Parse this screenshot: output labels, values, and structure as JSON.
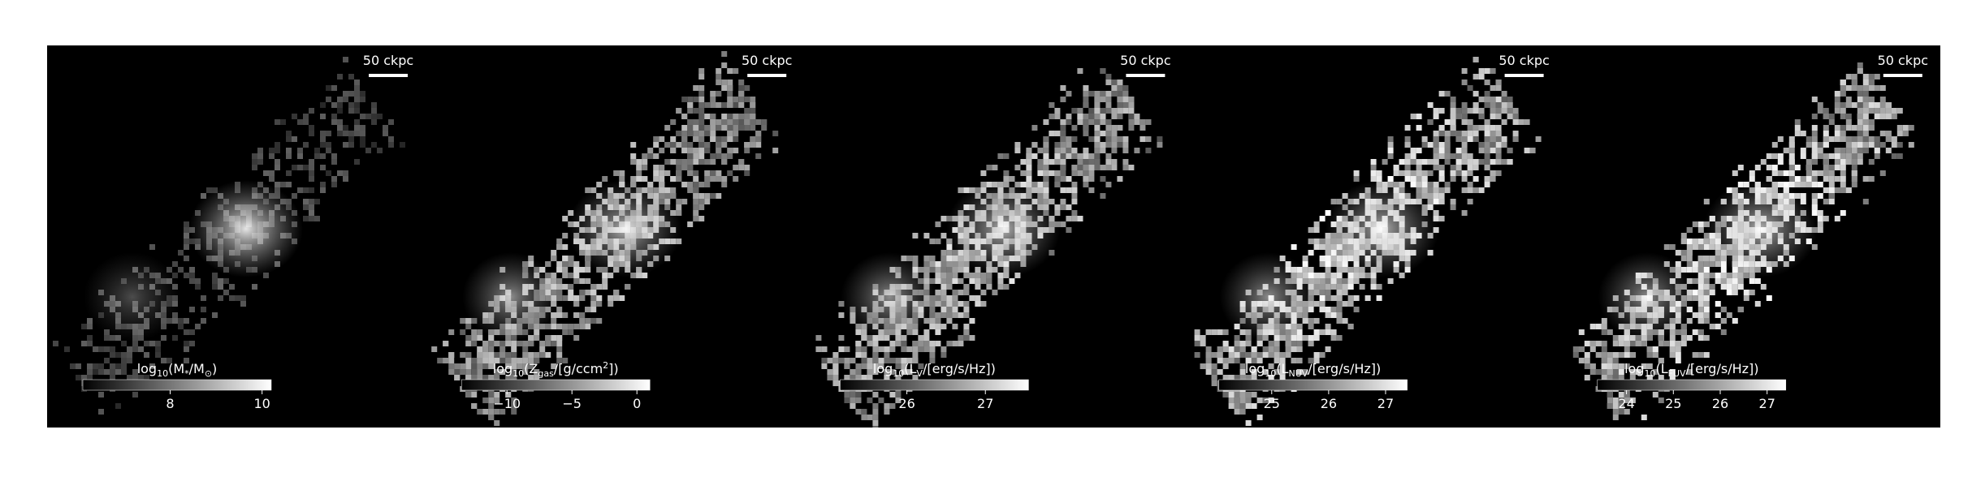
{
  "panels": [
    {
      "scale_bar": "50 ckpc",
      "label": [
        {
          "text": "log"
        },
        {
          "text": "10",
          "sub": true
        },
        {
          "text": "(M"
        },
        {
          "text": "*",
          "sub": true
        },
        {
          "text": "/M"
        },
        {
          "text": "⊙",
          "sub": true
        },
        {
          "text": ")"
        }
      ],
      "clim": [
        6.1,
        10.2
      ],
      "ticks": [
        8,
        10
      ]
    },
    {
      "scale_bar": "50 ckpc",
      "label": [
        {
          "text": "log"
        },
        {
          "text": "10",
          "sub": true
        },
        {
          "text": "(Z"
        },
        {
          "text": "gas",
          "sub": true
        },
        {
          "text": "/[g/ccm"
        },
        {
          "text": "2",
          "sup": true
        },
        {
          "text": "])"
        }
      ],
      "clim": [
        -13.5,
        1
      ],
      "ticks": [
        {
          "value": -10,
          "label": "−10"
        },
        {
          "value": -5,
          "label": "−5"
        },
        0
      ]
    },
    {
      "scale_bar": "50 ckpc",
      "label": [
        {
          "text": "log"
        },
        {
          "text": "10",
          "sub": true
        },
        {
          "text": "(L"
        },
        {
          "text": "V",
          "sub": true
        },
        {
          "text": "/[erg/s/Hz])"
        }
      ],
      "clim": [
        25.15,
        27.55
      ],
      "ticks": [
        26,
        27
      ]
    },
    {
      "scale_bar": "50 ckpc",
      "label": [
        {
          "text": "log"
        },
        {
          "text": "10",
          "sub": true
        },
        {
          "text": "(L"
        },
        {
          "text": "NUV",
          "sub": true
        },
        {
          "text": "/[erg/s/Hz])"
        }
      ],
      "clim": [
        24.07,
        27.38
      ],
      "ticks": [
        25,
        26,
        27
      ]
    },
    {
      "scale_bar": "50 ckpc",
      "label": [
        {
          "text": "log"
        },
        {
          "text": "10",
          "sub": true
        },
        {
          "text": "(L"
        },
        {
          "text": "FUV",
          "sub": true
        },
        {
          "text": "/[erg/s/Hz])"
        }
      ],
      "clim": [
        23.38,
        27.4
      ],
      "ticks": [
        24,
        25,
        26,
        27
      ]
    }
  ]
}
